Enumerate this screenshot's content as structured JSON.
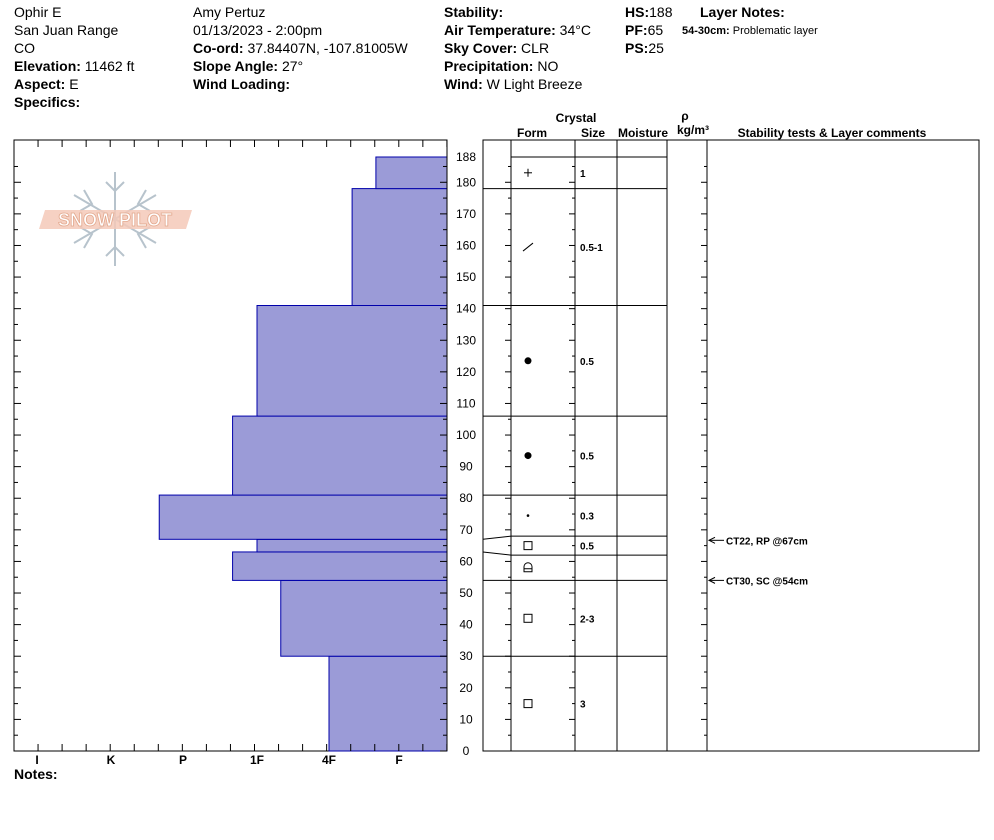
{
  "header": {
    "location_name": "Ophir E",
    "range": "San Juan Range",
    "state": "CO",
    "elevation_label": "Elevation:",
    "elevation_value": "11462 ft",
    "aspect_label": "Aspect:",
    "aspect_value": "E",
    "specifics_label": "Specifics:",
    "observer": "Amy  Pertuz",
    "datetime": "01/13/2023 - 2:00pm",
    "coord_label": "Co-ord:",
    "coord_value": "37.84407N, -107.81005W",
    "slope_label": "Slope Angle:",
    "slope_value": "27°",
    "wind_loading_label": "Wind Loading:",
    "stability_label": "Stability:",
    "air_temp_label": "Air Temperature:",
    "air_temp_value": "34°C",
    "sky_label": "Sky Cover:",
    "sky_value": "CLR",
    "precip_label": "Precipitation:",
    "precip_value": "NO",
    "wind_label": "Wind:",
    "wind_value": "W Light Breeze",
    "hs_label": "HS:",
    "hs_value": "188",
    "pf_label": "PF:",
    "pf_value": "65",
    "ps_label": "PS:",
    "ps_value": "25",
    "layer_notes_label": "Layer Notes:",
    "layer_note_range": "54-30cm:",
    "layer_note_text": "Problematic layer",
    "notes_label": "Notes:"
  },
  "logo_text": "SNOW PILOT",
  "columns": {
    "crystal": "Crystal",
    "form": "Form",
    "size": "Size",
    "moisture": "Moisture",
    "rho": "ρ",
    "density_unit": "kg/m³",
    "stability": "Stability tests & Layer comments"
  },
  "colors": {
    "bar_fill": "#9b9bd7",
    "bar_stroke": "#0000aa"
  },
  "chart_data": {
    "type": "bar",
    "orientation": "horizontal",
    "hardness_scale": [
      "I",
      "K",
      "P",
      "1F",
      "4F",
      "F"
    ],
    "hardness_axis_order": [
      "I",
      "K",
      "P",
      "1F",
      "4F",
      "F"
    ],
    "yticks": [
      0,
      10,
      20,
      30,
      40,
      50,
      60,
      70,
      80,
      90,
      100,
      110,
      120,
      130,
      140,
      150,
      160,
      170,
      180,
      188
    ],
    "ylim": [
      0,
      188
    ],
    "hardness_profile": [
      {
        "bottom": 0,
        "top": 30,
        "hardness_level": 1
      },
      {
        "bottom": 30,
        "top": 54,
        "hardness_level": 1.67
      },
      {
        "bottom": 54,
        "top": 63,
        "hardness_level": 2.33
      },
      {
        "bottom": 63,
        "top": 67,
        "hardness_level": 2
      },
      {
        "bottom": 67,
        "top": 81,
        "hardness_level": 3.33
      },
      {
        "bottom": 81,
        "top": 106,
        "hardness_level": 2.33
      },
      {
        "bottom": 106,
        "top": 141,
        "hardness_level": 2
      },
      {
        "bottom": 141,
        "top": 178,
        "hardness_level": 0.67
      },
      {
        "bottom": 178,
        "top": 188,
        "hardness_level": 0.33
      }
    ],
    "layers": [
      {
        "bottom": 178,
        "top": 188,
        "form": "plus",
        "size": "1"
      },
      {
        "bottom": 141,
        "top": 178,
        "form": "slash",
        "size": "0.5-1"
      },
      {
        "bottom": 106,
        "top": 141,
        "form": "dot",
        "size": "0.5"
      },
      {
        "bottom": 81,
        "top": 106,
        "form": "dot",
        "size": "0.5"
      },
      {
        "bottom": 68,
        "top": 81,
        "form": "small-dot",
        "size": "0.3"
      },
      {
        "bottom": 62,
        "top": 68,
        "form": "square",
        "size": "0.5"
      },
      {
        "bottom": 54,
        "top": 62,
        "form": "hollow-cup",
        "size": ""
      },
      {
        "bottom": 30,
        "top": 54,
        "form": "square",
        "size": "2-3"
      },
      {
        "bottom": 0,
        "top": 30,
        "form": "square",
        "size": "3"
      }
    ],
    "stability_tests": [
      {
        "depth": 67,
        "label": "CT22, RP @67cm"
      },
      {
        "depth": 54,
        "label": "CT30, SC @54cm"
      }
    ]
  }
}
